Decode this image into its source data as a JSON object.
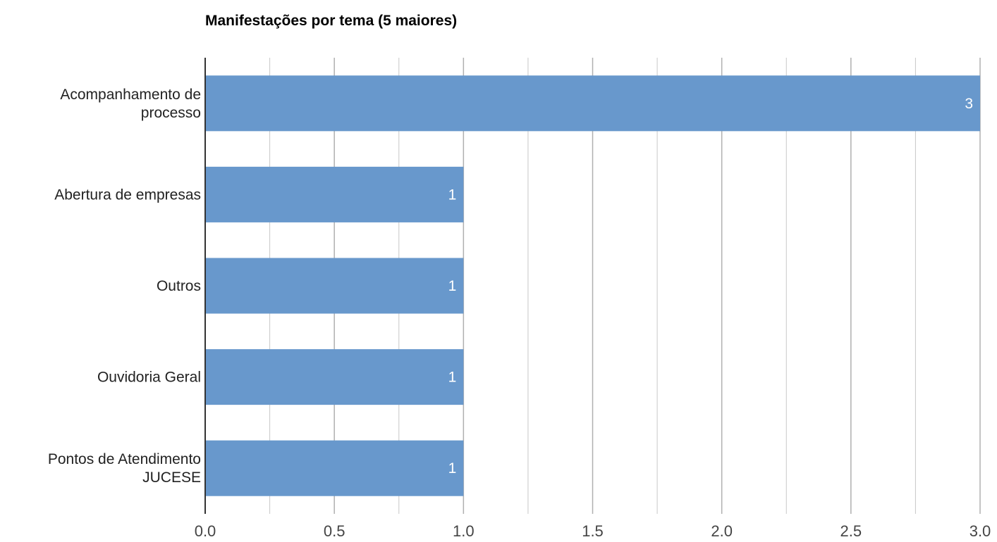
{
  "chart_data": {
    "type": "bar",
    "orientation": "horizontal",
    "title": "Manifestações por tema (5 maiores)",
    "categories": [
      [
        "Acompanhamento de",
        "processo"
      ],
      [
        "Abertura de empresas"
      ],
      [
        "Outros"
      ],
      [
        "Ouvidoria Geral"
      ],
      [
        "Pontos de Atendimento",
        "JUCESE"
      ]
    ],
    "values": [
      3,
      1,
      1,
      1,
      1
    ],
    "data_labels": [
      "3",
      "1",
      "1",
      "1",
      "1"
    ],
    "xlim": [
      0,
      3
    ],
    "x_ticks": [
      0,
      0.5,
      1,
      1.5,
      2,
      2.5,
      3
    ],
    "x_tick_labels": [
      "0.0",
      "0.5",
      "1.0",
      "1.5",
      "2.0",
      "2.5",
      "3.0"
    ],
    "x_minor_step": 0.25,
    "grid": true,
    "xlabel": "",
    "ylabel": "",
    "colors": {
      "bar": "#6898CC",
      "data_label": "#ffffff"
    }
  }
}
